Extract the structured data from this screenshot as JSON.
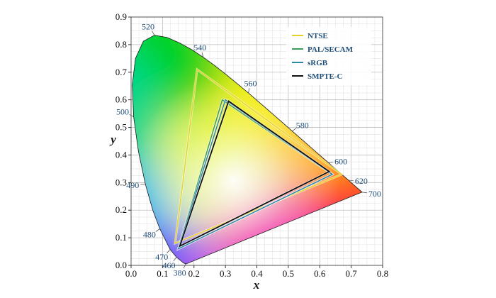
{
  "chart_data": {
    "type": "chromaticity-diagram",
    "xlabel": "x",
    "ylabel": "y",
    "xlim": [
      0.0,
      0.8
    ],
    "ylim": [
      0.0,
      0.9
    ],
    "x_ticks": [
      "0.0",
      "0.1",
      "0.2",
      "0.3",
      "0.4",
      "0.5",
      "0.6",
      "0.7",
      "0.8"
    ],
    "y_ticks": [
      "0.0",
      "0.1",
      "0.2",
      "0.3",
      "0.4",
      "0.5",
      "0.6",
      "0.7",
      "0.8",
      "0.9"
    ],
    "grid": true,
    "legend_position": "top-right",
    "spectral_locus": [
      [
        0.1741,
        0.005
      ],
      [
        0.1666,
        0.0089
      ],
      [
        0.144,
        0.0297
      ],
      [
        0.1241,
        0.0578
      ],
      [
        0.0913,
        0.1327
      ],
      [
        0.0687,
        0.2007
      ],
      [
        0.0454,
        0.295
      ],
      [
        0.0235,
        0.4127
      ],
      [
        0.0082,
        0.5384
      ],
      [
        0.0039,
        0.6548
      ],
      [
        0.0139,
        0.7502
      ],
      [
        0.0389,
        0.812
      ],
      [
        0.0743,
        0.8338
      ],
      [
        0.1142,
        0.8262
      ],
      [
        0.1547,
        0.8059
      ],
      [
        0.1929,
        0.7816
      ],
      [
        0.2296,
        0.7543
      ],
      [
        0.2658,
        0.7243
      ],
      [
        0.3016,
        0.6923
      ],
      [
        0.3373,
        0.6589
      ],
      [
        0.3731,
        0.6245
      ],
      [
        0.4087,
        0.5896
      ],
      [
        0.4441,
        0.5547
      ],
      [
        0.4788,
        0.5202
      ],
      [
        0.5125,
        0.4866
      ],
      [
        0.5448,
        0.4544
      ],
      [
        0.5752,
        0.4242
      ],
      [
        0.6029,
        0.3965
      ],
      [
        0.627,
        0.3725
      ],
      [
        0.6482,
        0.3514
      ],
      [
        0.6658,
        0.334
      ],
      [
        0.6915,
        0.3083
      ],
      [
        0.7147,
        0.2853
      ],
      [
        0.7347,
        0.2653
      ]
    ],
    "wavelength_labels": [
      {
        "label": "380",
        "x": 0.1741,
        "y": 0.005
      },
      {
        "label": "460",
        "x": 0.144,
        "y": 0.0297
      },
      {
        "label": "470",
        "x": 0.1241,
        "y": 0.0578
      },
      {
        "label": "480",
        "x": 0.0913,
        "y": 0.1327
      },
      {
        "label": "490",
        "x": 0.0454,
        "y": 0.295
      },
      {
        "label": "500",
        "x": 0.0082,
        "y": 0.5384
      },
      {
        "label": "520",
        "x": 0.0743,
        "y": 0.8338
      },
      {
        "label": "540",
        "x": 0.2296,
        "y": 0.7543
      },
      {
        "label": "560",
        "x": 0.3731,
        "y": 0.6245
      },
      {
        "label": "580",
        "x": 0.5125,
        "y": 0.4866
      },
      {
        "label": "600",
        "x": 0.627,
        "y": 0.3725
      },
      {
        "label": "620",
        "x": 0.6915,
        "y": 0.3083
      },
      {
        "label": "700",
        "x": 0.7347,
        "y": 0.2653
      }
    ],
    "series": [
      {
        "name": "NTSE",
        "color": "#e8d22a",
        "points": [
          [
            0.67,
            0.33
          ],
          [
            0.21,
            0.71
          ],
          [
            0.14,
            0.08
          ]
        ]
      },
      {
        "name": "PAL/SECAM",
        "color": "#3d9a5a",
        "points": [
          [
            0.64,
            0.33
          ],
          [
            0.29,
            0.6
          ],
          [
            0.15,
            0.06
          ]
        ]
      },
      {
        "name": "sRGB",
        "color": "#2e86a8",
        "points": [
          [
            0.64,
            0.33
          ],
          [
            0.3,
            0.6
          ],
          [
            0.15,
            0.06
          ]
        ]
      },
      {
        "name": "SMPTE-C",
        "color": "#111111",
        "points": [
          [
            0.63,
            0.34
          ],
          [
            0.31,
            0.595
          ],
          [
            0.155,
            0.07
          ]
        ]
      }
    ]
  }
}
